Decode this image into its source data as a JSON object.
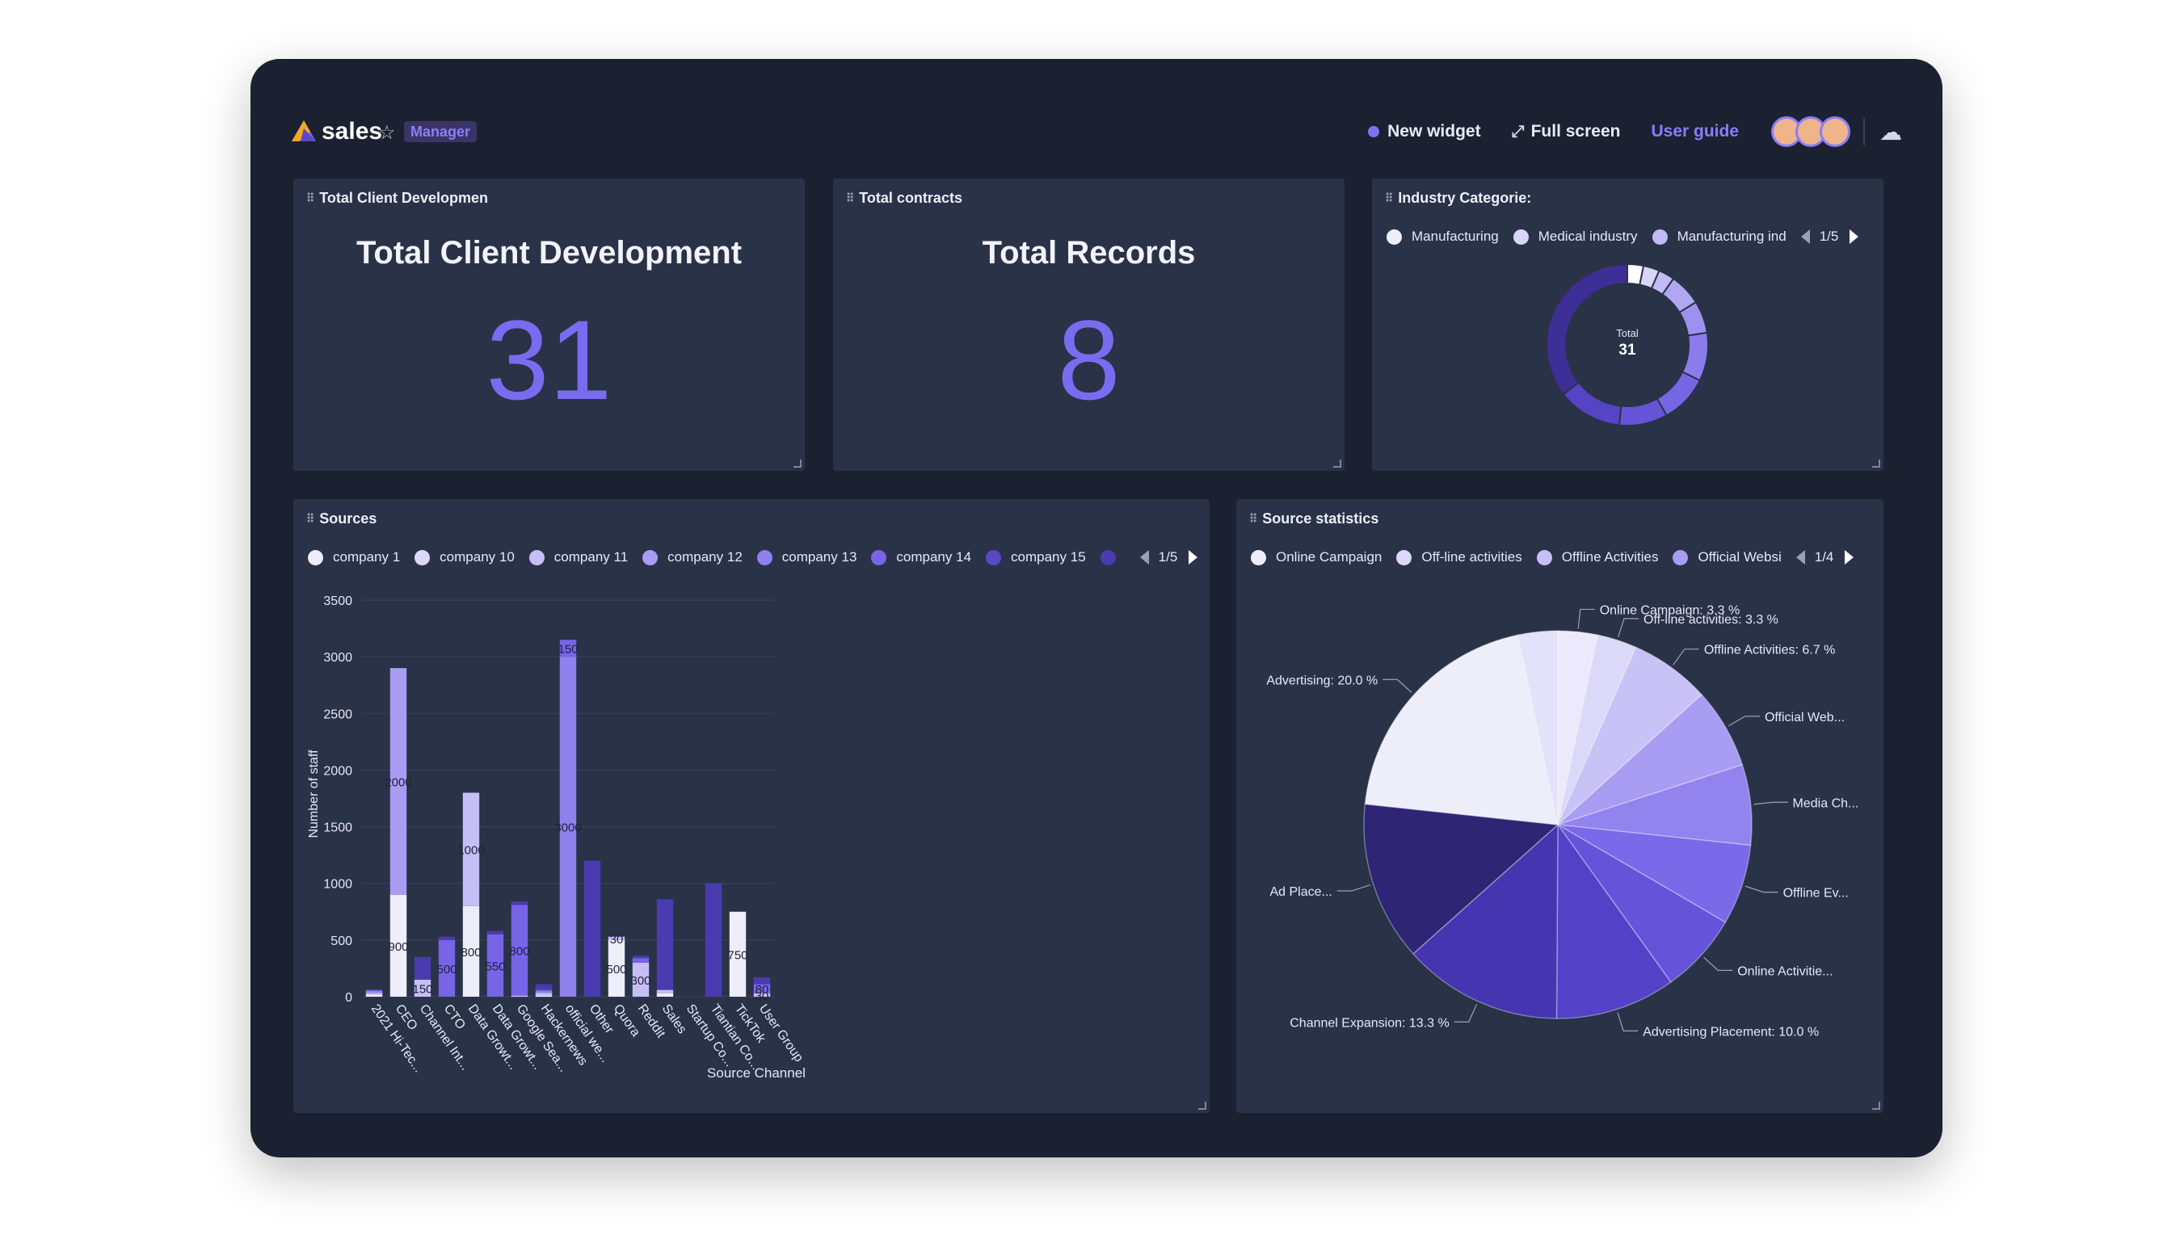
{
  "app": {
    "name": "sales",
    "role": "Manager"
  },
  "topbar": {
    "new_widget": "New widget",
    "full_screen": "Full screen",
    "user_guide": "User guide"
  },
  "colors": {
    "accent": "#7a6cf0",
    "frame": "#1b2130",
    "card": "#2a3248"
  },
  "cards": {
    "client_dev": {
      "label": "Total Client Developmen",
      "title": "Total Client Development",
      "value": "31"
    },
    "contracts": {
      "label": "Total contracts",
      "title": "Total Records",
      "value": "8"
    },
    "industry": {
      "label": "Industry Categorie:",
      "legend": [
        {
          "name": "Manufacturing",
          "color": "#eeeefb"
        },
        {
          "name": "Medical industry",
          "color": "#d9d5f8"
        },
        {
          "name": "Manufacturing ind",
          "color": "#c3bbf5"
        }
      ],
      "page": "1/5",
      "center_label": "Total",
      "center_value": "31"
    },
    "sources": {
      "label": "Sources",
      "legend": [
        {
          "name": "company 1",
          "color": "#eeeefb"
        },
        {
          "name": "company 10",
          "color": "#dcd8f9"
        },
        {
          "name": "company 11",
          "color": "#c6bff6"
        },
        {
          "name": "company 12",
          "color": "#a99cf3"
        },
        {
          "name": "company 13",
          "color": "#8f80ee"
        },
        {
          "name": "company 14",
          "color": "#7764e6"
        },
        {
          "name": "company 15",
          "color": "#5a48c8"
        },
        {
          "name": "",
          "color": "#4a3bb0"
        }
      ],
      "page": "1/5"
    },
    "source_stats": {
      "label": "Source statistics",
      "legend": [
        {
          "name": "Online Campaign",
          "color": "#eeeefb"
        },
        {
          "name": "Off-line activities",
          "color": "#dcd8f9"
        },
        {
          "name": "Offline Activities",
          "color": "#c6bff6"
        },
        {
          "name": "Official Websi",
          "color": "#a99cf3"
        }
      ],
      "page": "1/4"
    }
  },
  "chart_data": [
    {
      "type": "pie",
      "variant": "donut",
      "title": "Industry Categorie:",
      "slices": [
        {
          "name": "Manufacturing",
          "value": 1,
          "color": "#ffffff"
        },
        {
          "name": "Medical industry",
          "value": 1,
          "color": "#d9d5f8"
        },
        {
          "name": "Manufacturing ind",
          "value": 1,
          "color": "#c3bbf5"
        },
        {
          "name": "",
          "value": 2,
          "color": "#b0a7f3"
        },
        {
          "name": "",
          "value": 2,
          "color": "#9d91f0"
        },
        {
          "name": "",
          "value": 3,
          "color": "#8a7cec"
        },
        {
          "name": "",
          "value": 3,
          "color": "#7766e4"
        },
        {
          "name": "",
          "value": 3,
          "color": "#6553d8"
        },
        {
          "name": "",
          "value": 4,
          "color": "#5544c4"
        },
        {
          "name": "",
          "value": 11,
          "color": "#3d2f96"
        }
      ],
      "total": 31
    },
    {
      "type": "bar",
      "stacked": true,
      "xlabel": "Source Channel",
      "ylabel": "Number of staff",
      "ylim": [
        0,
        3500
      ],
      "yticks": [
        0,
        500,
        1000,
        1500,
        2000,
        2500,
        3000,
        3500
      ],
      "categories": [
        "2021 Hi-Tec...",
        "CEO",
        "Channel Int...",
        "CTO",
        "Data Growt...",
        "Data Growt...",
        "Google Sea...",
        "Hackernews",
        "official we...",
        "Other",
        "Quora",
        "Reddit",
        "Sales",
        "Startup Co...",
        "Tiantian Co...",
        "TickTok",
        "User Group"
      ],
      "series": [
        {
          "color": "#eeeefb",
          "values": [
            20,
            900,
            0,
            0,
            800,
            0,
            0,
            10,
            0,
            0,
            500,
            0,
            30,
            0,
            0,
            750,
            0
          ],
          "labels": [
            "",
            "900",
            "",
            "",
            "800",
            "",
            "",
            "",
            "",
            "",
            "500",
            "",
            "",
            "",
            "",
            "750",
            ""
          ]
        },
        {
          "color": "#c6bff6",
          "values": [
            10,
            0,
            150,
            0,
            1000,
            0,
            10,
            20,
            0,
            0,
            30,
            300,
            30,
            0,
            0,
            0,
            30
          ],
          "labels": [
            "",
            "",
            "150",
            "",
            "1000",
            "",
            "",
            "",
            "",
            "",
            "30",
            "300",
            "",
            "",
            "",
            "",
            "30"
          ]
        },
        {
          "color": "#a99cf3",
          "values": [
            10,
            2000,
            0,
            0,
            0,
            0,
            0,
            10,
            0,
            0,
            0,
            0,
            0,
            0,
            0,
            0,
            0
          ],
          "labels": [
            "",
            "2000",
            "",
            "",
            "",
            "",
            "",
            "",
            "",
            "",
            "",
            "",
            "",
            "",
            "",
            "",
            ""
          ]
        },
        {
          "color": "#8f80ee",
          "values": [
            10,
            0,
            0,
            0,
            0,
            0,
            0,
            10,
            3000,
            0,
            0,
            0,
            0,
            0,
            0,
            0,
            0
          ],
          "labels": [
            "",
            "",
            "",
            "",
            "",
            "",
            "",
            "",
            "3000",
            "",
            "",
            "",
            "",
            "",
            "",
            "",
            ""
          ]
        },
        {
          "color": "#7764e6",
          "values": [
            10,
            0,
            0,
            500,
            0,
            550,
            800,
            10,
            150,
            0,
            0,
            40,
            0,
            0,
            0,
            0,
            80
          ],
          "labels": [
            "",
            "",
            "",
            "500",
            "",
            "550",
            "800",
            "",
            "150",
            "",
            "",
            "",
            "",
            "",
            "",
            "",
            "80"
          ]
        },
        {
          "color": "#4a3bb0",
          "values": [
            0,
            0,
            200,
            30,
            0,
            30,
            30,
            50,
            0,
            1200,
            0,
            20,
            800,
            0,
            1000,
            0,
            60
          ],
          "labels": [
            "",
            "",
            "",
            "",
            "",
            "",
            "",
            "",
            "",
            "",
            "",
            "",
            "",
            "",
            "",
            "",
            ""
          ]
        }
      ]
    },
    {
      "type": "pie",
      "title": "Source statistics",
      "slices": [
        {
          "name": "Online Campaign",
          "percent": 3.3,
          "color": "#ece9fc",
          "label": "Online Campaign: 3.3 %"
        },
        {
          "name": "Off-line activities",
          "percent": 3.3,
          "color": "#dcd8f9",
          "label": "Off-line activities: 3.3 %"
        },
        {
          "name": "Offline Activities",
          "percent": 6.7,
          "color": "#c9c2f7",
          "label": "Offline Activities: 6.7 %"
        },
        {
          "name": "Official Web...",
          "percent": 6.7,
          "color": "#a89cf3",
          "label": "Official Web..."
        },
        {
          "name": "Media Ch...",
          "percent": 6.7,
          "color": "#9283ef",
          "label": "Media Ch..."
        },
        {
          "name": "Offline Ev...",
          "percent": 6.7,
          "color": "#7a69e8",
          "label": "Offline Ev..."
        },
        {
          "name": "Online Activitie...",
          "percent": 6.7,
          "color": "#6553da",
          "label": "Online Activitie..."
        },
        {
          "name": "Advertising Placement",
          "percent": 10.0,
          "color": "#5341c8",
          "label": "Advertising Placement: 10.0 %"
        },
        {
          "name": "Channel Expansion",
          "percent": 13.3,
          "color": "#4535b0",
          "label": "Channel Expansion: 13.3 %"
        },
        {
          "name": "Ad Place...",
          "percent": 13.3,
          "color": "#2f2575",
          "label": "Ad Place..."
        },
        {
          "name": "Advertising",
          "percent": 20.0,
          "color": "#eeeefb",
          "label": "Advertising: 20.0 %"
        },
        {
          "name": "",
          "percent": 3.3,
          "color": "#e4e1fa",
          "label": ""
        }
      ]
    }
  ]
}
